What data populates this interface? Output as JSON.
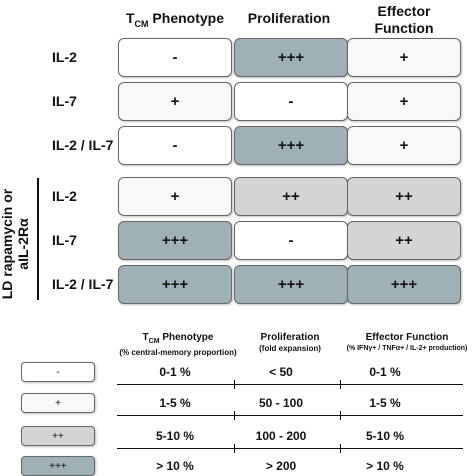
{
  "headers": {
    "tcm_main": "T",
    "tcm_sub": "CM",
    "tcm_rest": " Phenotype",
    "proliferation": "Proliferation",
    "effector_line1": "Effector",
    "effector_line2": "Function"
  },
  "group_label_line1": "LD rapamycin or",
  "group_label_line2": "aIL-2Rα",
  "top_rows": [
    {
      "label": "IL-2",
      "cells": [
        {
          "value": "-",
          "level": 0
        },
        {
          "value": "+++",
          "level": 3
        },
        {
          "value": "+",
          "level": 1
        }
      ]
    },
    {
      "label": "IL-7",
      "cells": [
        {
          "value": "+",
          "level": 1
        },
        {
          "value": "-",
          "level": 0
        },
        {
          "value": "+",
          "level": 1
        }
      ]
    },
    {
      "label": "IL-2 / IL-7",
      "cells": [
        {
          "value": "-",
          "level": 0
        },
        {
          "value": "+++",
          "level": 3
        },
        {
          "value": "+",
          "level": 1
        }
      ]
    }
  ],
  "bottom_rows": [
    {
      "label": "IL-2",
      "cells": [
        {
          "value": "+",
          "level": 1
        },
        {
          "value": "++",
          "level": 2
        },
        {
          "value": "++",
          "level": 2
        }
      ]
    },
    {
      "label": "IL-7",
      "cells": [
        {
          "value": "+++",
          "level": 3
        },
        {
          "value": "-",
          "level": 0
        },
        {
          "value": "++",
          "level": 2
        }
      ]
    },
    {
      "label": "IL-2 / IL-7",
      "cells": [
        {
          "value": "+++",
          "level": 3
        },
        {
          "value": "+++",
          "level": 3
        },
        {
          "value": "+++",
          "level": 3
        }
      ]
    }
  ],
  "legend": {
    "col1_title_main": "T",
    "col1_title_sub": "CM",
    "col1_title_rest": " Phenotype",
    "col1_subtitle": "(% central-memory proportion)",
    "col2_title": "Proliferation",
    "col2_subtitle": "(fold expansion)",
    "col3_title": "Effector Function",
    "col3_subtitle": "(% IFNγ+ / TNFα+ / IL-2+ production)",
    "rows": [
      {
        "symbol": "-",
        "level": 0,
        "tcm": "0-1 %",
        "prolif": "< 50",
        "effector": "0-1 %"
      },
      {
        "symbol": "+",
        "level": 1,
        "tcm": "1-5 %",
        "prolif": "50 - 100",
        "effector": "1-5 %"
      },
      {
        "symbol": "++",
        "level": 2,
        "tcm": "5-10 %",
        "prolif": "100 - 200",
        "effector": "5-10 %"
      },
      {
        "symbol": "+++",
        "level": 3,
        "tcm": "> 10 %",
        "prolif": "> 200",
        "effector": "> 10 %"
      }
    ]
  },
  "level_colors": [
    "#ffffff",
    "#f8f8f8",
    "#d4d4d4",
    "#9fb1b6"
  ]
}
